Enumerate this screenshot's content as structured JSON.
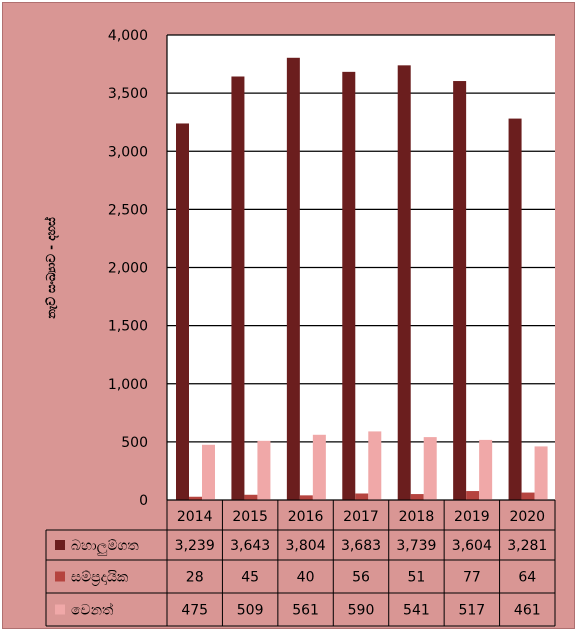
{
  "chart_data": {
    "type": "bar",
    "categories": [
      "2014",
      "2015",
      "2016",
      "2017",
      "2018",
      "2019",
      "2020"
    ],
    "series": [
      {
        "name": "බහාලුම්ගත",
        "color": "#6b1e1e",
        "values": [
          3239,
          3643,
          3804,
          3683,
          3739,
          3604,
          3281
        ]
      },
      {
        "name": "සම්ප්‍රදායික",
        "color": "#b5443f",
        "values": [
          28,
          45,
          40,
          56,
          51,
          77,
          64
        ]
      },
      {
        "name": "වෙනත්",
        "color": "#f0a8a8",
        "values": [
          475,
          509,
          561,
          590,
          541,
          517,
          461
        ]
      }
    ],
    "table": {
      "rows": [
        [
          "3,239",
          "3,643",
          "3,804",
          "3,683",
          "3,739",
          "3,604",
          "3,281"
        ],
        [
          "28",
          "45",
          "40",
          "56",
          "51",
          "77",
          "64"
        ],
        [
          "475",
          "509",
          "561",
          "590",
          "541",
          "517",
          "461"
        ]
      ]
    },
    "ylabel": "නැව් සංඛ්‍යාව - දහස්",
    "ylim": [
      0,
      4000
    ],
    "yticks": [
      "0",
      "500",
      "1,000",
      "1,500",
      "2,000",
      "2,500",
      "3,000",
      "3,500",
      "4,000"
    ],
    "ytick_values": [
      0,
      500,
      1000,
      1500,
      2000,
      2500,
      3000,
      3500,
      4000
    ],
    "grid": true,
    "plot_background": "#ffffff",
    "chart_background": "#d99694",
    "legend": "data-table"
  }
}
